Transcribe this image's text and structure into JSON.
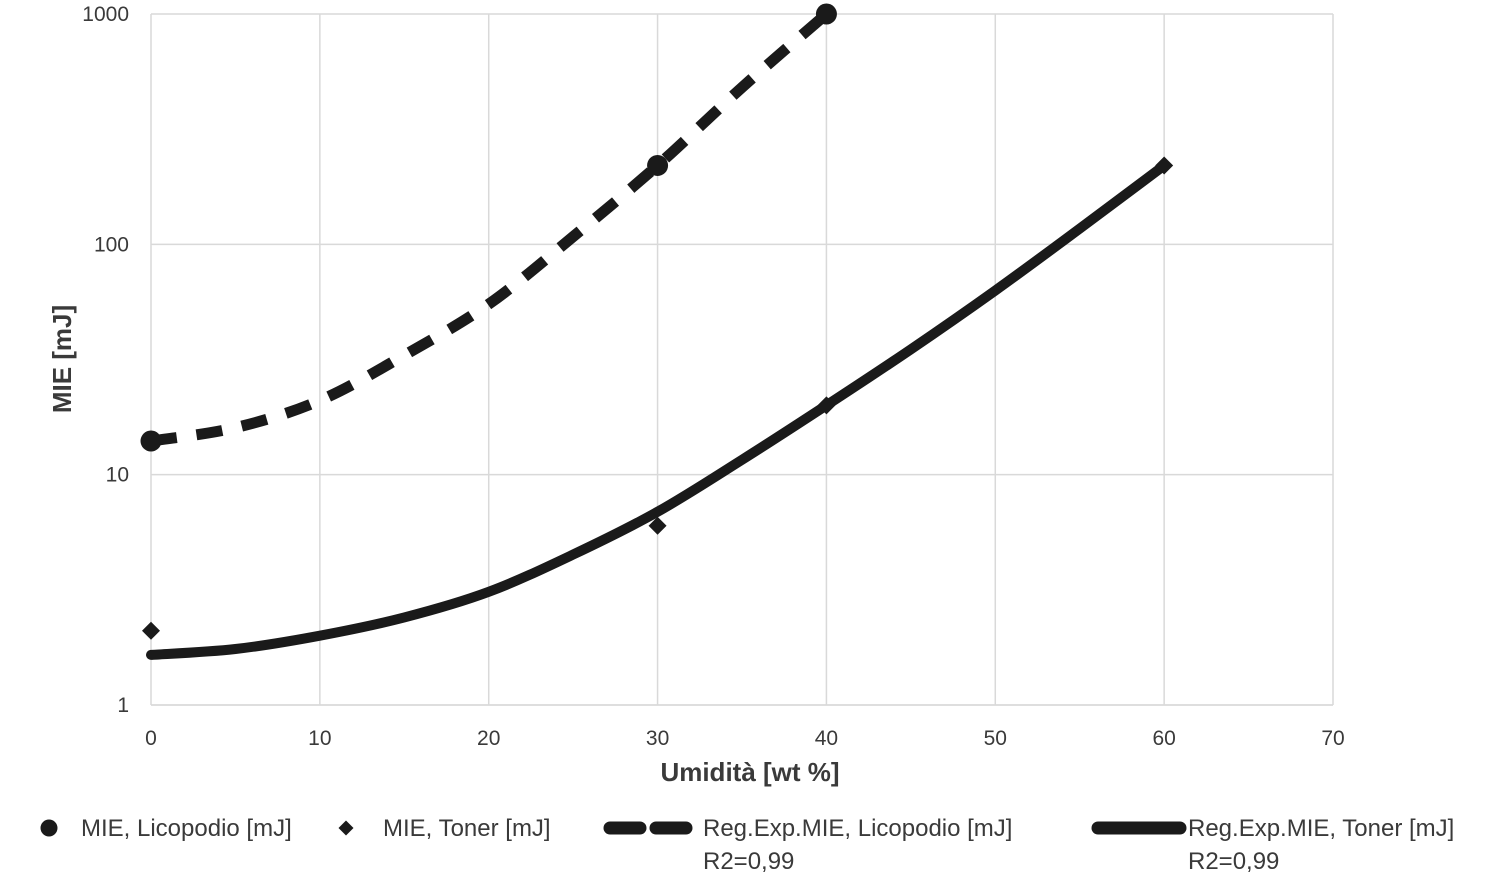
{
  "chart_data": {
    "type": "scatter",
    "title": "",
    "xlabel": "Umidità [wt %]",
    "ylabel": "MIE [mJ]",
    "xlim": [
      0,
      70
    ],
    "ylim": [
      1,
      1000
    ],
    "yscale": "log",
    "grid": true,
    "legend_position": "bottom",
    "x_ticks": [
      "0",
      "10",
      "20",
      "30",
      "40",
      "50",
      "60",
      "70"
    ],
    "y_ticks": [
      "1",
      "10",
      "100",
      "1000"
    ],
    "series": [
      {
        "name": "MIE, Licopodio [mJ]",
        "kind": "points",
        "marker": "circle",
        "color": "#1a1a1a",
        "x": [
          0,
          30,
          40
        ],
        "y": [
          14,
          220,
          1000
        ]
      },
      {
        "name": "MIE, Toner [mJ]",
        "kind": "points",
        "marker": "diamond",
        "color": "#1a1a1a",
        "x": [
          0,
          30,
          40,
          60
        ],
        "y": [
          2.1,
          6,
          20,
          220
        ]
      },
      {
        "name": "Reg.Exp.MIE, Licopodio [mJ]",
        "name_line2": "R2=0,99",
        "kind": "line",
        "style": "dashed",
        "color": "#1a1a1a",
        "x": [
          0,
          5,
          10,
          15,
          20,
          25,
          30,
          35,
          40
        ],
        "y": [
          14,
          16,
          21,
          33,
          55,
          108,
          220,
          480,
          1000
        ]
      },
      {
        "name": "Reg.Exp.MIE, Toner [mJ]",
        "name_line2": "R2=0,99",
        "kind": "line",
        "style": "solid",
        "color": "#1a1a1a",
        "x": [
          0,
          5,
          10,
          15,
          20,
          25,
          30,
          35,
          40,
          45,
          50,
          55,
          60
        ],
        "y": [
          1.65,
          1.75,
          2.0,
          2.4,
          3.1,
          4.5,
          6.9,
          11.6,
          20,
          35,
          63,
          117,
          220
        ]
      }
    ]
  }
}
